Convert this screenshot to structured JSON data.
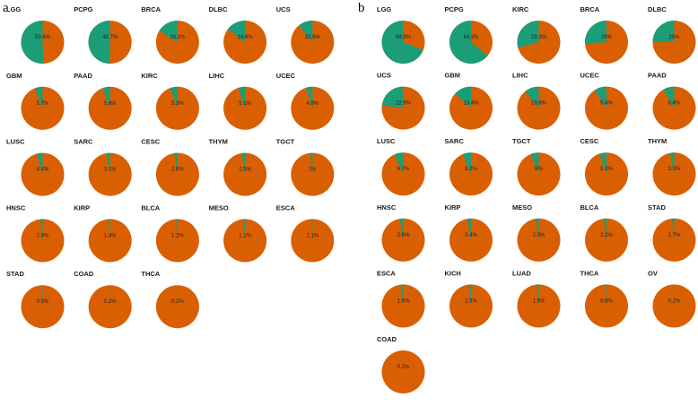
{
  "colors": {
    "primary": "#D95F02",
    "secondary": "#1B9E77",
    "text": "#1a1a1a",
    "background": "#ffffff"
  },
  "chart_data": [
    {
      "panel": "a",
      "type": "pie",
      "columns": 5,
      "pies": [
        {
          "title": "LGG",
          "value": 50.6,
          "label": "50.6%"
        },
        {
          "title": "PCPG",
          "value": 49.7,
          "label": "49.7%"
        },
        {
          "title": "BRCA",
          "value": 16.1,
          "label": "16.1%"
        },
        {
          "title": "DLBC",
          "value": 14.6,
          "label": "14.6%"
        },
        {
          "title": "UCS",
          "value": 10.9,
          "label": "10.9%"
        },
        {
          "title": "GBM",
          "value": 5.7,
          "label": "5.7%"
        },
        {
          "title": "PAAD",
          "value": 5.6,
          "label": "5.6%"
        },
        {
          "title": "KIRC",
          "value": 5.3,
          "label": "5.3%"
        },
        {
          "title": "LIHC",
          "value": 5.1,
          "label": "5.1%"
        },
        {
          "title": "UCEC",
          "value": 4.9,
          "label": "4.9%"
        },
        {
          "title": "LUSC",
          "value": 4.4,
          "label": "4.4%"
        },
        {
          "title": "SARC",
          "value": 3.1,
          "label": "3.1%"
        },
        {
          "title": "CESC",
          "value": 2.6,
          "label": "2.6%"
        },
        {
          "title": "THYM",
          "value": 2.5,
          "label": "2.5%"
        },
        {
          "title": "TGCT",
          "value": 2,
          "label": "2%"
        },
        {
          "title": "HNSC",
          "value": 1.8,
          "label": "1.8%"
        },
        {
          "title": "KIRP",
          "value": 1.4,
          "label": "1.4%"
        },
        {
          "title": "BLCA",
          "value": 1.2,
          "label": "1.2%"
        },
        {
          "title": "MESO",
          "value": 1.1,
          "label": "1.1%"
        },
        {
          "title": "ESCA",
          "value": 1.1,
          "label": "1.1%"
        },
        {
          "title": "STAD",
          "value": 0.5,
          "label": "0.5%"
        },
        {
          "title": "COAD",
          "value": 0.2,
          "label": "0.2%"
        },
        {
          "title": "THCA",
          "value": 0.2,
          "label": "0.2%"
        }
      ]
    },
    {
      "panel": "b",
      "type": "pie",
      "columns": 5,
      "pies": [
        {
          "title": "LGG",
          "value": 68.9,
          "label": "68.9%"
        },
        {
          "title": "PCPG",
          "value": 64.2,
          "label": "64.2%"
        },
        {
          "title": "KIRC",
          "value": 29.3,
          "label": "29.3%"
        },
        {
          "title": "BRCA",
          "value": 26,
          "label": "26%"
        },
        {
          "title": "DLBC",
          "value": 25,
          "label": "25%"
        },
        {
          "title": "UCS",
          "value": 22.9,
          "label": "22.9%"
        },
        {
          "title": "GBM",
          "value": 13.4,
          "label": "13.4%"
        },
        {
          "title": "LIHC",
          "value": 10.8,
          "label": "10.8%"
        },
        {
          "title": "UCEC",
          "value": 9.4,
          "label": "9.4%"
        },
        {
          "title": "PAAD",
          "value": 8.4,
          "label": "8.4%"
        },
        {
          "title": "LUSC",
          "value": 6.7,
          "label": "6.7%"
        },
        {
          "title": "SARC",
          "value": 6.2,
          "label": "6.2%"
        },
        {
          "title": "TGCT",
          "value": 6,
          "label": "6%"
        },
        {
          "title": "CESC",
          "value": 5.3,
          "label": "5.3%"
        },
        {
          "title": "THYM",
          "value": 3.3,
          "label": "3.3%"
        },
        {
          "title": "HNSC",
          "value": 2.6,
          "label": "2.6%"
        },
        {
          "title": "KIRP",
          "value": 2.4,
          "label": "2.4%"
        },
        {
          "title": "MESO",
          "value": 2.3,
          "label": "2.3%"
        },
        {
          "title": "BLCA",
          "value": 2.2,
          "label": "2.2%"
        },
        {
          "title": "STAD",
          "value": 1.7,
          "label": "1.7%"
        },
        {
          "title": "ESCA",
          "value": 1.6,
          "label": "1.6%"
        },
        {
          "title": "KICH",
          "value": 1.5,
          "label": "1.5%"
        },
        {
          "title": "LUAD",
          "value": 1.5,
          "label": "1.5%"
        },
        {
          "title": "THCA",
          "value": 0.8,
          "label": "0.8%"
        },
        {
          "title": "OV",
          "value": 0.2,
          "label": "0.2%"
        },
        {
          "title": "COAD",
          "value": 0.2,
          "label": "0.2%"
        }
      ]
    }
  ]
}
